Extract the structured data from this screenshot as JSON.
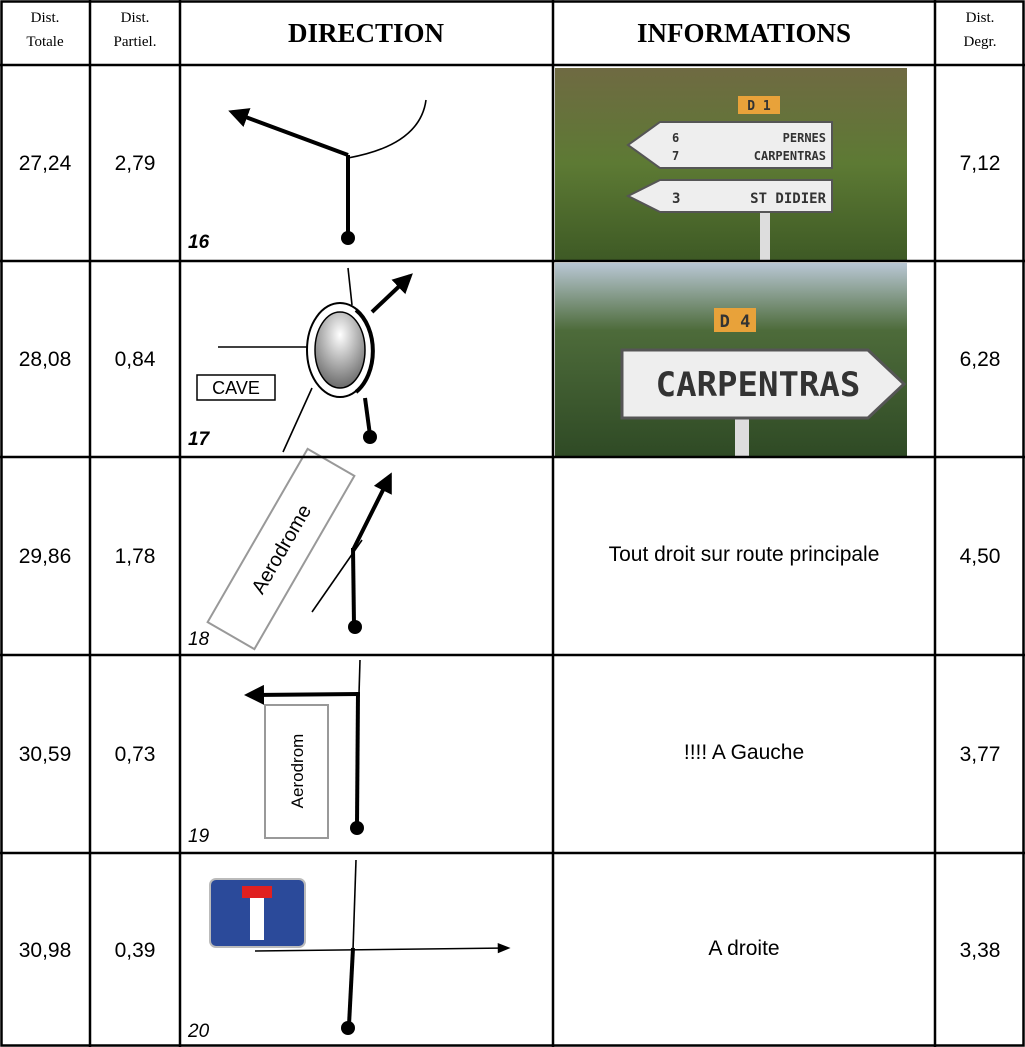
{
  "table": {
    "header": [
      [
        "Dist.",
        "Totale"
      ],
      [
        "Dist.",
        "Partiel."
      ],
      "DIRECTION",
      "INFORMATIONS",
      [
        "Dist.",
        "Degr."
      ]
    ],
    "rows": [
      {
        "total": "27,24",
        "partial": "2,79",
        "direction": {
          "number": "16"
        },
        "info": {
          "sign": {
            "road": "D 1",
            "lines": [
              [
                "6",
                "PERNES"
              ],
              [
                "7",
                "CARPENTRAS"
              ],
              [
                "3",
                "ST DIDIER"
              ]
            ]
          }
        },
        "degr": "7,12"
      },
      {
        "total": "28,08",
        "partial": "0,84",
        "direction": {
          "number": "17",
          "label": "CAVE"
        },
        "info": {
          "sign": {
            "road": "D 4",
            "lines": [
              [
                "CARPENTRAS"
              ]
            ]
          }
        },
        "degr": "6,28"
      },
      {
        "total": "29,86",
        "partial": "1,78",
        "direction": {
          "number": "18",
          "label": "Aerodrome"
        },
        "info": {
          "text": "Tout droit sur route principale"
        },
        "degr": "4,50"
      },
      {
        "total": "30,59",
        "partial": "0,73",
        "direction": {
          "number": "19",
          "label": "Aerodrom"
        },
        "info": {
          "text": "!!!! A Gauche"
        },
        "degr": "3,77"
      },
      {
        "total": "30,98",
        "partial": "0,39",
        "direction": {
          "number": "20"
        },
        "info": {
          "text": "A droite"
        },
        "degr": "3,38"
      }
    ]
  }
}
